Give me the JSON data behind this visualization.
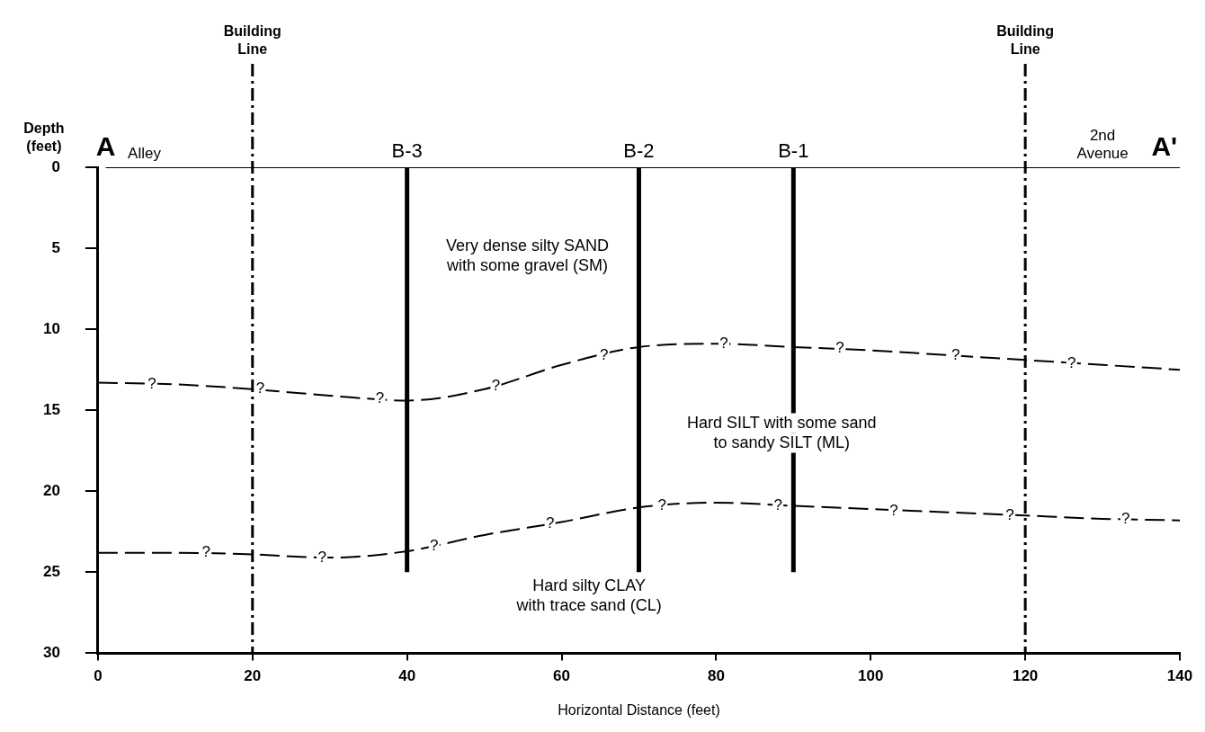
{
  "chart_data": {
    "type": "line",
    "xlabel": "Horizontal Distance (feet)",
    "ylabel": "Depth\n(feet)",
    "xlim": [
      0,
      140
    ],
    "xticks": [
      0,
      20,
      40,
      60,
      80,
      100,
      120,
      140
    ],
    "ylim": [
      30,
      0
    ],
    "yticks": [
      0,
      5,
      10,
      15,
      20,
      25,
      30
    ],
    "grid": false,
    "legend": false,
    "marker": "none",
    "series": [
      {
        "color": "#000000",
        "line_style": "solid",
        "x": [
          1,
          140
        ],
        "values": [
          0,
          0
        ]
      },
      {
        "color": "#000000",
        "line_style": "dashed",
        "x": [
          0,
          10,
          20,
          30,
          40,
          50,
          60,
          70,
          80,
          90,
          100,
          110,
          120,
          130,
          140
        ],
        "values": [
          13.3,
          13.4,
          13.7,
          14.1,
          14.4,
          13.7,
          12.2,
          11.1,
          10.9,
          11.1,
          11.3,
          11.6,
          11.9,
          12.2,
          12.5
        ]
      },
      {
        "color": "#000000",
        "line_style": "dashed",
        "x": [
          0,
          10,
          20,
          30,
          40,
          50,
          60,
          70,
          80,
          90,
          100,
          110,
          120,
          130,
          140
        ],
        "values": [
          23.8,
          23.8,
          23.9,
          24.1,
          23.7,
          22.7,
          21.9,
          21.0,
          20.7,
          20.9,
          21.1,
          21.3,
          21.5,
          21.7,
          21.8
        ]
      },
      {
        "name": "B-3",
        "color": "#000000",
        "line_style": "solid",
        "x": [
          40,
          40
        ],
        "values": [
          0,
          25
        ]
      },
      {
        "name": "B-2",
        "color": "#000000",
        "line_style": "solid",
        "x": [
          70,
          70
        ],
        "values": [
          0,
          25
        ]
      },
      {
        "name": "B-1",
        "color": "#000000",
        "line_style": "solid",
        "x": [
          90,
          90
        ],
        "values": [
          0,
          25
        ]
      }
    ],
    "ref_lines": [
      {
        "axis": "x",
        "value": 20,
        "label": "Building\nLine",
        "line_style": "dashed",
        "color": "#000000"
      },
      {
        "axis": "x",
        "value": 120,
        "label": "Building\nLine",
        "line_style": "dashed",
        "color": "#000000"
      }
    ],
    "annotations": [
      {
        "text": "A",
        "x": 1,
        "y": 0
      },
      {
        "text": "Alley",
        "x": 6,
        "y": 0
      },
      {
        "text": "2nd\nAvenue",
        "x": 130,
        "y": 0
      },
      {
        "text": "A'",
        "x": 138,
        "y": 0
      },
      "Very dense silty SAND\nwith some gravel (SM)",
      "Hard SILT with some sand\nto sandy SILT (ML)",
      "Hard silty CLAY\nwith trace sand (CL)",
      {
        "text": "?",
        "x": 7,
        "y": 13.4
      },
      {
        "text": "?",
        "x": 21,
        "y": 13.7
      },
      {
        "text": "?",
        "x": 36.5,
        "y": 14.3
      },
      {
        "text": "?",
        "x": 51.5,
        "y": 13.5
      },
      {
        "text": "?",
        "x": 65.5,
        "y": 11.6
      },
      {
        "text": "?",
        "x": 81,
        "y": 10.9
      },
      {
        "text": "?",
        "x": 96,
        "y": 11.2
      },
      {
        "text": "?",
        "x": 111,
        "y": 11.6
      },
      {
        "text": "?",
        "x": 126,
        "y": 12.1
      },
      {
        "text": "?",
        "x": 14,
        "y": 23.8
      },
      {
        "text": "?",
        "x": 29,
        "y": 24.1
      },
      {
        "text": "?",
        "x": 43.5,
        "y": 23.4
      },
      {
        "text": "?",
        "x": 58.5,
        "y": 22.0
      },
      {
        "text": "?",
        "x": 73,
        "y": 20.9
      },
      {
        "text": "?",
        "x": 88,
        "y": 20.9
      },
      {
        "text": "?",
        "x": 103,
        "y": 21.2
      },
      {
        "text": "?",
        "x": 118,
        "y": 21.5
      },
      {
        "text": "?",
        "x": 133,
        "y": 21.7
      }
    ]
  }
}
